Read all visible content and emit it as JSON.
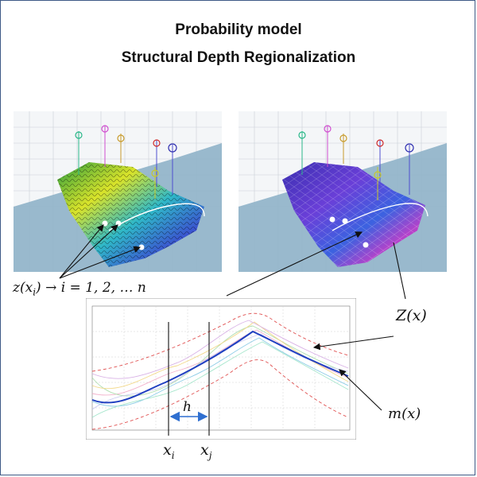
{
  "title": {
    "line1": "Probability model",
    "line2": "Structural  Depth Regionalization"
  },
  "labels": {
    "z_xi": "z(x",
    "z_xi_sub": "i",
    "z_xi_rest": ") → i = 1, 2, … n",
    "Z_x": "Z(x)",
    "m_x": "m(x)",
    "h": "h",
    "x_i": "x",
    "x_i_sub": "i",
    "x_j": "x",
    "x_j_sub": "j"
  },
  "colors": {
    "mean_curve": "#1f3fc0",
    "envelope": "#e05050",
    "slab": "#8fb3c8",
    "h_arrow": "#2f6fd0",
    "frame": "#3e5a86"
  },
  "icons": {
    "left_render": "terrain-surface-contour-colored",
    "right_render": "terrain-surface-simulation-colored",
    "well_markers": "crosshair-circle-icon"
  }
}
